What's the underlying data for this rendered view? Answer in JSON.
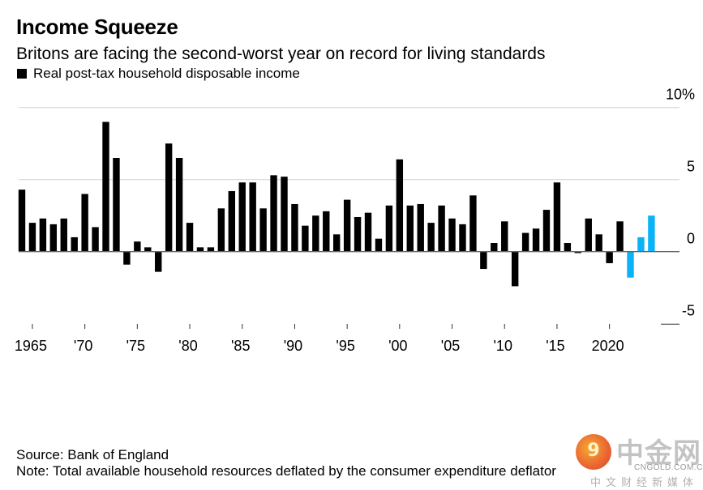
{
  "header": {
    "title": "Income Squeeze",
    "subtitle": "Britons are facing the second-worst year on record for living standards",
    "legend_label": "Real post-tax household disposable income"
  },
  "footer": {
    "source": "Source: Bank of England",
    "note": "Note: Total available household resources deflated by the consumer expenditure deflator"
  },
  "watermark": {
    "logo_glyph": "9",
    "brand_cn": "中金网",
    "domain": "CNGOLD.COM.CN",
    "tagline": "中文财经新媒体"
  },
  "colors": {
    "actual": "#000000",
    "forecast": "#0AB2F7",
    "gridline": "#dcdcdc",
    "zero_line": "#666666"
  },
  "chart_data": {
    "type": "bar",
    "title": "Income Squeeze",
    "subtitle": "Britons are facing the second-worst year on record for living standards",
    "xlabel": "",
    "ylabel": "",
    "ylim": [
      -5,
      10
    ],
    "y_ticks": [
      {
        "value": 10,
        "label": "10%"
      },
      {
        "value": 5,
        "label": "5"
      },
      {
        "value": 0,
        "label": "0"
      },
      {
        "value": -5,
        "label": "-5"
      }
    ],
    "x_ticks": [
      {
        "year": 1965,
        "label": "1965"
      },
      {
        "year": 1970,
        "label": "'70"
      },
      {
        "year": 1975,
        "label": "'75"
      },
      {
        "year": 1980,
        "label": "'80"
      },
      {
        "year": 1985,
        "label": "'85"
      },
      {
        "year": 1990,
        "label": "'90"
      },
      {
        "year": 1995,
        "label": "'95"
      },
      {
        "year": 2000,
        "label": "'00"
      },
      {
        "year": 2005,
        "label": "'05"
      },
      {
        "year": 2010,
        "label": "'10"
      },
      {
        "year": 2015,
        "label": "'15"
      },
      {
        "year": 2020,
        "label": "2020"
      }
    ],
    "grid": true,
    "legend": "top-left",
    "series": [
      {
        "name": "Real post-tax household disposable income",
        "unit": "% change",
        "points": [
          {
            "year": 1964,
            "value": 4.3
          },
          {
            "year": 1965,
            "value": 2.0
          },
          {
            "year": 1966,
            "value": 2.3
          },
          {
            "year": 1967,
            "value": 1.9
          },
          {
            "year": 1968,
            "value": 2.3
          },
          {
            "year": 1969,
            "value": 1.0
          },
          {
            "year": 1970,
            "value": 4.0
          },
          {
            "year": 1971,
            "value": 1.7
          },
          {
            "year": 1972,
            "value": 9.0
          },
          {
            "year": 1973,
            "value": 6.5
          },
          {
            "year": 1974,
            "value": -0.9
          },
          {
            "year": 1975,
            "value": 0.7
          },
          {
            "year": 1976,
            "value": 0.3
          },
          {
            "year": 1977,
            "value": -1.4
          },
          {
            "year": 1978,
            "value": 7.5
          },
          {
            "year": 1979,
            "value": 6.5
          },
          {
            "year": 1980,
            "value": 2.0
          },
          {
            "year": 1981,
            "value": 0.3
          },
          {
            "year": 1982,
            "value": 0.3
          },
          {
            "year": 1983,
            "value": 3.0
          },
          {
            "year": 1984,
            "value": 4.2
          },
          {
            "year": 1985,
            "value": 4.8
          },
          {
            "year": 1986,
            "value": 4.8
          },
          {
            "year": 1987,
            "value": 3.0
          },
          {
            "year": 1988,
            "value": 5.3
          },
          {
            "year": 1989,
            "value": 5.2
          },
          {
            "year": 1990,
            "value": 3.3
          },
          {
            "year": 1991,
            "value": 1.8
          },
          {
            "year": 1992,
            "value": 2.5
          },
          {
            "year": 1993,
            "value": 2.8
          },
          {
            "year": 1994,
            "value": 1.2
          },
          {
            "year": 1995,
            "value": 3.6
          },
          {
            "year": 1996,
            "value": 2.4
          },
          {
            "year": 1997,
            "value": 2.7
          },
          {
            "year": 1998,
            "value": 0.9
          },
          {
            "year": 1999,
            "value": 3.2
          },
          {
            "year": 2000,
            "value": 6.4
          },
          {
            "year": 2001,
            "value": 3.2
          },
          {
            "year": 2002,
            "value": 3.3
          },
          {
            "year": 2003,
            "value": 2.0
          },
          {
            "year": 2004,
            "value": 3.2
          },
          {
            "year": 2005,
            "value": 2.3
          },
          {
            "year": 2006,
            "value": 1.9
          },
          {
            "year": 2007,
            "value": 3.9
          },
          {
            "year": 2008,
            "value": -1.2
          },
          {
            "year": 2009,
            "value": 0.6
          },
          {
            "year": 2010,
            "value": 2.1
          },
          {
            "year": 2011,
            "value": -2.4
          },
          {
            "year": 2012,
            "value": 1.3
          },
          {
            "year": 2013,
            "value": 1.6
          },
          {
            "year": 2014,
            "value": 2.9
          },
          {
            "year": 2015,
            "value": 4.8
          },
          {
            "year": 2016,
            "value": 0.6
          },
          {
            "year": 2017,
            "value": -0.1
          },
          {
            "year": 2018,
            "value": 2.3
          },
          {
            "year": 2019,
            "value": 1.2
          },
          {
            "year": 2020,
            "value": -0.8
          },
          {
            "year": 2021,
            "value": 2.1
          },
          {
            "year": 2022,
            "value": -1.8,
            "forecast": true
          },
          {
            "year": 2023,
            "value": 1.0,
            "forecast": true
          },
          {
            "year": 2024,
            "value": 2.5,
            "forecast": true
          }
        ]
      }
    ]
  }
}
